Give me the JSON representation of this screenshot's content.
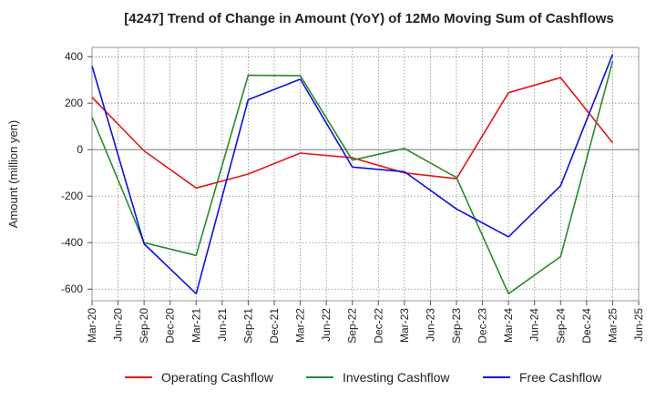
{
  "chart_data": {
    "type": "line",
    "title": "[4247]  Trend of Change in Amount (YoY) of 12Mo Moving Sum of Cashflows",
    "xlabel": "",
    "ylabel": "Amount (million yen)",
    "ylim": [
      -650,
      440
    ],
    "yticks": [
      -600,
      -400,
      -200,
      0,
      200,
      400
    ],
    "ytick_labels": [
      "-600",
      "-400",
      "-200",
      "0",
      "200",
      "400"
    ],
    "categories": [
      "Mar-20",
      "Jun-20",
      "Sep-20",
      "Dec-20",
      "Mar-21",
      "Jun-21",
      "Sep-21",
      "Dec-21",
      "Mar-22",
      "Jun-22",
      "Sep-22",
      "Dec-22",
      "Mar-23",
      "Jun-23",
      "Sep-23",
      "Dec-23",
      "Mar-24",
      "Jun-24",
      "Sep-24",
      "Dec-24",
      "Mar-25",
      "Jun-25"
    ],
    "grid": true,
    "legend_position": "bottom",
    "series": [
      {
        "name": "Operating Cashflow",
        "color": "#e8141a",
        "values": [
          225,
          null,
          -5,
          null,
          -165,
          null,
          -105,
          null,
          -15,
          null,
          -35,
          null,
          -100,
          null,
          -125,
          null,
          245,
          null,
          310,
          null,
          30,
          null
        ]
      },
      {
        "name": "Investing Cashflow",
        "color": "#2a8a2a",
        "values": [
          140,
          null,
          -400,
          null,
          -455,
          null,
          320,
          null,
          318,
          null,
          -45,
          null,
          5,
          null,
          -120,
          null,
          -620,
          null,
          -460,
          null,
          380,
          null
        ]
      },
      {
        "name": "Free Cashflow",
        "color": "#1010e0",
        "values": [
          360,
          null,
          -405,
          null,
          -620,
          null,
          215,
          null,
          303,
          null,
          -75,
          null,
          -95,
          null,
          -255,
          null,
          -375,
          null,
          -155,
          null,
          410,
          null
        ]
      }
    ]
  }
}
